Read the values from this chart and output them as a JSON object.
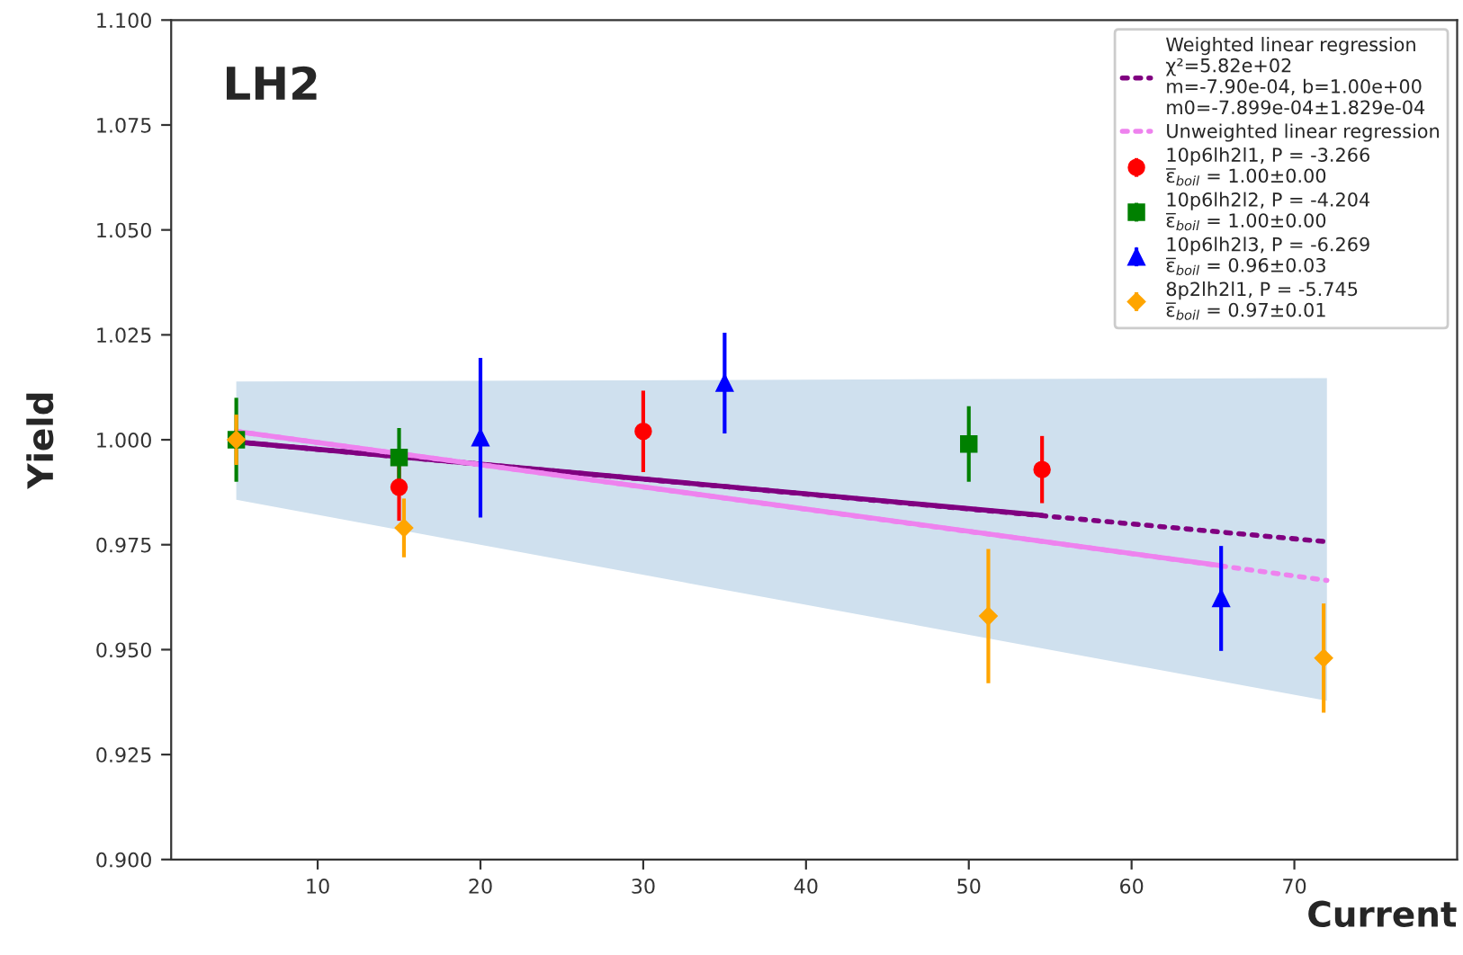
{
  "chart_data": {
    "type": "scatter",
    "title": "LH2",
    "xlabel": "Current",
    "ylabel": "Yield",
    "xlim": [
      1,
      80
    ],
    "xticks": [
      10,
      20,
      30,
      40,
      50,
      60,
      70
    ],
    "ylim": [
      0.9,
      1.1
    ],
    "yticks": [
      {
        "value": 0.9,
        "label": "0.900"
      },
      {
        "value": 0.925,
        "label": "0.925"
      },
      {
        "value": 0.95,
        "label": "0.950"
      },
      {
        "value": 0.975,
        "label": "0.975"
      },
      {
        "value": 1.0,
        "label": "1.000"
      },
      {
        "value": 1.025,
        "label": "1.025"
      },
      {
        "value": 1.05,
        "label": "1.050"
      },
      {
        "value": 1.075,
        "label": "1.075"
      },
      {
        "value": 1.1,
        "label": "1.100"
      }
    ],
    "grid": false,
    "legend": "top right",
    "series": [
      {
        "name": "Weighted linear regression\nχ²=5.82e+02\nm=-7.90e-04, b=1.00e+00\nm0=-7.899e-04±1.829e-04",
        "type": "line",
        "line_style": "dotted",
        "marker": "none",
        "color": "#800080",
        "x": [
          5,
          72
        ],
        "values": [
          0.9995,
          0.9757
        ],
        "lower": [
          0.9857,
          0.9378
        ],
        "upper": [
          1.0139,
          1.0147
        ]
      },
      {
        "type": "line",
        "line_style": "solid",
        "marker": "none",
        "color": "#800080",
        "x": [
          5,
          54.5
        ],
        "values": [
          0.9995,
          0.982
        ]
      },
      {
        "name": "Unweighted linear regression",
        "type": "line",
        "line_style": "dotted",
        "marker": "none",
        "color": "#ee82ee",
        "x": [
          5,
          72
        ],
        "values": [
          1.002,
          0.9665
        ]
      },
      {
        "type": "line",
        "line_style": "solid",
        "marker": "none",
        "color": "#ee82ee",
        "x": [
          5,
          65.5
        ],
        "values": [
          1.002,
          0.97
        ]
      },
      {
        "name": "10p6lh2l1, P = -3.266\nε̅$_{boil}$ = 1.00±0.00",
        "marker": "circle",
        "color": "#ff0000",
        "x": [
          15,
          30,
          54.5
        ],
        "values": [
          0.9887,
          1.002,
          0.9929
        ],
        "errors": [
          0.008,
          0.0097,
          0.008
        ]
      },
      {
        "name": "10p6lh2l2, P = -4.204\nε̅$_{boil}$ = 1.00±0.00",
        "marker": "square",
        "color": "#008000",
        "x": [
          5,
          15,
          50
        ],
        "values": [
          1.0,
          0.9958,
          0.999
        ],
        "errors": [
          0.01,
          0.007,
          0.009
        ]
      },
      {
        "name": "10p6lh2l3, P = -6.269\nε̅$_{boil}$ = 0.96±0.03",
        "marker": "triangle",
        "color": "#0000ff",
        "x": [
          20,
          35,
          65.5
        ],
        "values": [
          1.0005,
          1.0135,
          0.9622
        ],
        "errors": [
          0.019,
          0.012,
          0.0125
        ]
      },
      {
        "name": "8p2lh2l1, P = -5.745\nε̅$_{boil}$ = 0.97±0.01",
        "marker": "diamond",
        "color": "#ffa500",
        "x": [
          5,
          15.3,
          51.2,
          71.8
        ],
        "values": [
          1.0,
          0.979,
          0.958,
          0.948
        ],
        "errors": [
          0.006,
          0.007,
          0.016,
          0.013
        ]
      }
    ]
  }
}
